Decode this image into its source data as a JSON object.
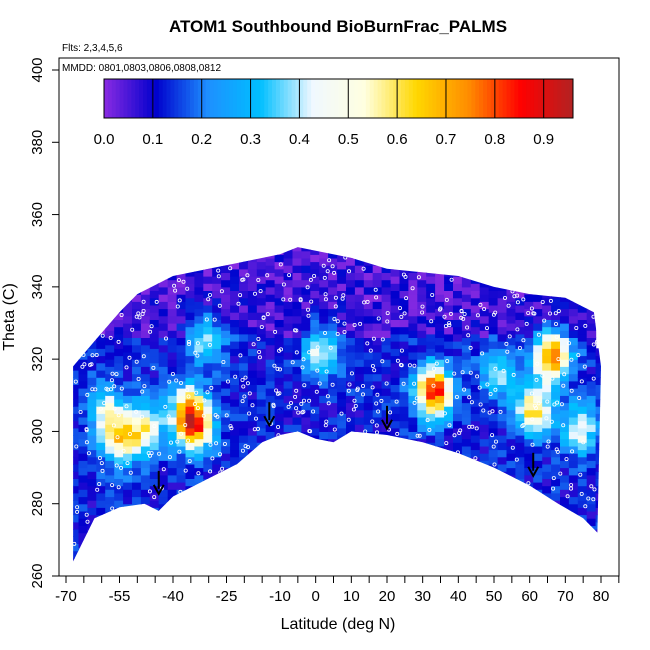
{
  "chart_data": {
    "type": "heatmap",
    "title": "ATOM1 Southbound BioBurnFrac_PALMS",
    "annotations": {
      "flights": "Flts: 2,3,4,5,6",
      "dates": "MMDD: 0801,0803,0806,0808,0812"
    },
    "xlabel": "Latitude (deg N)",
    "ylabel": "Theta (C)",
    "xlim": [
      -70,
      80
    ],
    "ylim": [
      260,
      400
    ],
    "x_tick_labels": [
      "-70",
      "-55",
      "-40",
      "-25",
      "-10",
      "0",
      "10",
      "20",
      "30",
      "40",
      "50",
      "60",
      "70",
      "80"
    ],
    "y_tick_labels": [
      "260",
      "280",
      "300",
      "320",
      "340",
      "360",
      "380",
      "400"
    ],
    "colorbar": {
      "range": [
        0,
        0.96
      ],
      "tick_labels": [
        "0.0",
        "0.1",
        "0.2",
        "0.3",
        "0.4",
        "0.5",
        "0.6",
        "0.7",
        "0.8",
        "0.9"
      ],
      "colors": [
        "#8a2be2",
        "#0000cd",
        "#1e90ff",
        "#00bfff",
        "#f0f8ff",
        "#ffffe0",
        "#ffd700",
        "#ff8c00",
        "#ff0000",
        "#b22222"
      ]
    },
    "bottom_boundary": [
      {
        "lat": -68,
        "theta": 264
      },
      {
        "lat": -62,
        "theta": 276
      },
      {
        "lat": -55,
        "theta": 279
      },
      {
        "lat": -48,
        "theta": 280
      },
      {
        "lat": -44,
        "theta": 278
      },
      {
        "lat": -40,
        "theta": 282
      },
      {
        "lat": -30,
        "theta": 287
      },
      {
        "lat": -22,
        "theta": 291
      },
      {
        "lat": -15,
        "theta": 297
      },
      {
        "lat": -10,
        "theta": 299
      },
      {
        "lat": -5,
        "theta": 300
      },
      {
        "lat": 0,
        "theta": 298
      },
      {
        "lat": 5,
        "theta": 297
      },
      {
        "lat": 10,
        "theta": 300
      },
      {
        "lat": 20,
        "theta": 299
      },
      {
        "lat": 30,
        "theta": 297
      },
      {
        "lat": 40,
        "theta": 294
      },
      {
        "lat": 50,
        "theta": 290
      },
      {
        "lat": 60,
        "theta": 285
      },
      {
        "lat": 68,
        "theta": 280
      },
      {
        "lat": 75,
        "theta": 276
      },
      {
        "lat": 79,
        "theta": 272
      }
    ],
    "top_boundary": [
      {
        "lat": -68,
        "theta": 318
      },
      {
        "lat": -62,
        "theta": 325
      },
      {
        "lat": -55,
        "theta": 333
      },
      {
        "lat": -50,
        "theta": 338
      },
      {
        "lat": -40,
        "theta": 343
      },
      {
        "lat": -30,
        "theta": 345
      },
      {
        "lat": -20,
        "theta": 347
      },
      {
        "lat": -10,
        "theta": 349
      },
      {
        "lat": -5,
        "theta": 351
      },
      {
        "lat": 0,
        "theta": 350
      },
      {
        "lat": 10,
        "theta": 348
      },
      {
        "lat": 20,
        "theta": 345
      },
      {
        "lat": 30,
        "theta": 344
      },
      {
        "lat": 40,
        "theta": 343
      },
      {
        "lat": 50,
        "theta": 340
      },
      {
        "lat": 60,
        "theta": 338
      },
      {
        "lat": 70,
        "theta": 337
      },
      {
        "lat": 78,
        "theta": 333
      },
      {
        "lat": 80,
        "theta": 318
      }
    ],
    "hotspots": [
      {
        "lat": -56,
        "theta": 297,
        "value": 0.55
      },
      {
        "lat": -49,
        "theta": 300,
        "value": 0.5
      },
      {
        "lat": -35,
        "theta": 300,
        "value": 0.62
      },
      {
        "lat": -37,
        "theta": 305,
        "value": 0.58
      },
      {
        "lat": -32,
        "theta": 325,
        "value": 0.4
      },
      {
        "lat": -60,
        "theta": 305,
        "value": 0.42
      },
      {
        "lat": 0,
        "theta": 322,
        "value": 0.42
      },
      {
        "lat": 32,
        "theta": 310,
        "value": 0.85
      },
      {
        "lat": 60,
        "theta": 305,
        "value": 0.6
      },
      {
        "lat": 65,
        "theta": 320,
        "value": 0.75
      },
      {
        "lat": 73,
        "theta": 300,
        "value": 0.45
      },
      {
        "lat": 50,
        "theta": 315,
        "value": 0.35
      }
    ],
    "arrows": [
      {
        "lat": -44,
        "theta": 283
      },
      {
        "lat": -13,
        "theta": 302
      },
      {
        "lat": 20,
        "theta": 301
      },
      {
        "lat": 61,
        "theta": 288
      }
    ]
  }
}
